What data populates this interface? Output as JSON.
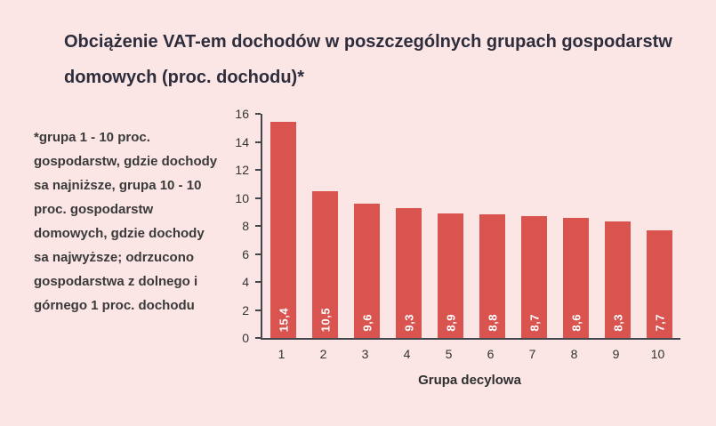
{
  "page": {
    "background_color": "#fbe5e5"
  },
  "title": "Obciążenie VAT-em dochodów w poszczególnych grupach gospodarstw domowych (proc. dochodu)*",
  "footnote": "*grupa 1 - 10 proc. gospodarstw, gdzie dochody sa najniższe, grupa 10 - 10 proc. gospodarstw domowych, gdzie dochody sa najwyższe; odrzucono gospodarstwa z dolnego i górnego 1 proc. dochodu",
  "chart_data": {
    "type": "bar",
    "title": "Obciążenie VAT-em dochodów w poszczególnych grupach gospodarstw domowych (proc. dochodu)*",
    "categories": [
      "1",
      "2",
      "3",
      "4",
      "5",
      "6",
      "7",
      "8",
      "9",
      "10"
    ],
    "values": [
      15.4,
      10.5,
      9.6,
      9.3,
      8.9,
      8.8,
      8.7,
      8.6,
      8.3,
      7.7
    ],
    "value_labels": [
      "15,4",
      "10,5",
      "9,6",
      "9,3",
      "8,9",
      "8,8",
      "8,7",
      "8,6",
      "8,3",
      "7,7"
    ],
    "xlabel": "Grupa decylowa",
    "ylabel": "",
    "ylim": [
      0,
      16
    ],
    "yticks": [
      0,
      2,
      4,
      6,
      8,
      10,
      12,
      14,
      16
    ],
    "grid": false,
    "legend": false,
    "bar_color": "#d9534f",
    "axis_color": "#45454e",
    "label_color": "#ffffff"
  }
}
